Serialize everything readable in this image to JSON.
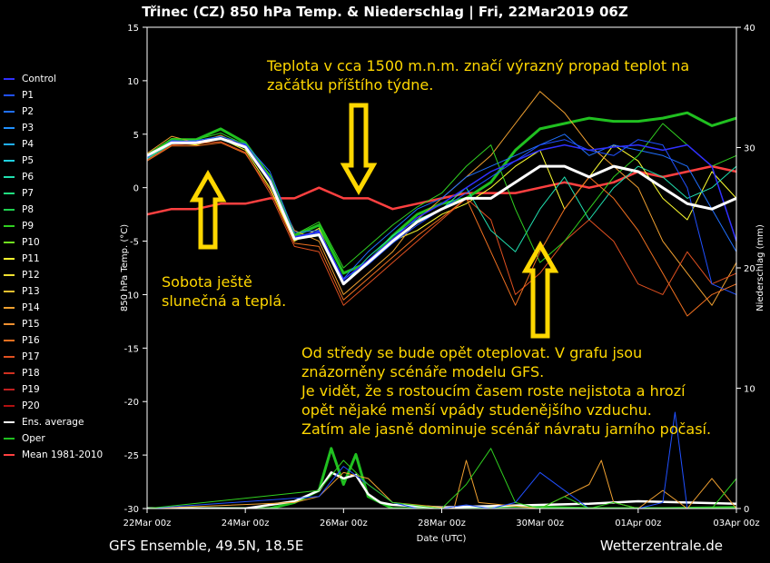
{
  "title": "Třinec  (CZ)  850 hPa Temp. & Niederschlag | Fri, 22Mar2019 06Z",
  "footer_left": "GFS Ensemble, 49.5N, 18.5E",
  "footer_right": "Wetterzentrale.de",
  "annotations": {
    "top": [
      "Teplota v cca 1500 m.n.m. značí výrazný propad teplot na",
      "začátku příštího týdne."
    ],
    "left": [
      "Sobota ještě",
      "slunečná a teplá."
    ],
    "bottom": [
      "Od středy se bude opět oteplovat. V grafu jsou",
      "znázorněny scénáře modelu GFS.",
      "Je vidět, že s rostoucím časem roste nejistota a hrozí",
      "opět nějaké menší vpády studenějšího vzduchu.",
      "Zatím ale jasně dominuje scénář návratu jarního počasí."
    ]
  },
  "chart_data": {
    "type": "line",
    "title": "Třinec  (CZ)  850 hPa Temp. & Niederschlag | Fri, 22Mar2019 06Z",
    "xlabel": "Date (UTC)",
    "ylabel": "850 hPa Temp. (°C)",
    "y2label": "Niederschlag (mm)",
    "x_ticks": [
      "22Mar 00z",
      "24Mar 00z",
      "26Mar 00z",
      "28Mar 00z",
      "30Mar 00z",
      "01Apr 00z",
      "03Apr 00z"
    ],
    "x_hours": [
      0,
      48,
      96,
      144,
      192,
      240,
      288
    ],
    "ylim": [
      -30,
      15
    ],
    "y_ticks": [
      15,
      10,
      5,
      0,
      -5,
      -10,
      -15,
      -20,
      -25,
      -30
    ],
    "y2lim": [
      0,
      40
    ],
    "y2_ticks": [
      40,
      30,
      20,
      10,
      0
    ],
    "grid": false,
    "legend_position": "left-outside",
    "legend": [
      {
        "name": "Control",
        "color": "#3030ff"
      },
      {
        "name": "P1",
        "color": "#2050ff"
      },
      {
        "name": "P2",
        "color": "#2070ff"
      },
      {
        "name": "P3",
        "color": "#2090ff"
      },
      {
        "name": "P4",
        "color": "#20b0ff"
      },
      {
        "name": "P5",
        "color": "#20d0e0"
      },
      {
        "name": "P6",
        "color": "#20e0b0"
      },
      {
        "name": "P7",
        "color": "#20e080"
      },
      {
        "name": "P8",
        "color": "#20d050"
      },
      {
        "name": "P9",
        "color": "#30d020"
      },
      {
        "name": "P10",
        "color": "#70e020"
      },
      {
        "name": "P11",
        "color": "#ffff30"
      },
      {
        "name": "P12",
        "color": "#f0e030"
      },
      {
        "name": "P13",
        "color": "#f0c030"
      },
      {
        "name": "P14",
        "color": "#f0a030"
      },
      {
        "name": "P15",
        "color": "#f09030"
      },
      {
        "name": "P16",
        "color": "#f07020"
      },
      {
        "name": "P17",
        "color": "#e05020"
      },
      {
        "name": "P18",
        "color": "#d03020"
      },
      {
        "name": "P19",
        "color": "#c02020"
      },
      {
        "name": "P20",
        "color": "#b01010"
      },
      {
        "name": "Ens. average",
        "color": "#ffffff"
      },
      {
        "name": "Oper",
        "color": "#20c020"
      },
      {
        "name": "Mean 1981-2010",
        "color": "#ff4040"
      }
    ],
    "series": [
      {
        "key": "mean",
        "color": "#ff4040",
        "width": 2.5,
        "x": [
          0,
          12,
          24,
          36,
          48,
          60,
          72,
          84,
          96,
          108,
          120,
          132,
          144,
          156,
          168,
          180,
          192,
          204,
          216,
          228,
          240,
          252,
          264,
          276,
          288
        ],
        "y": [
          -2.5,
          -2,
          -2,
          -1.5,
          -1.5,
          -1,
          -1,
          0,
          -1,
          -1,
          -2,
          -1.5,
          -1,
          -0.5,
          -0.5,
          -0.5,
          0,
          0.5,
          0,
          0.5,
          1.5,
          1,
          1.5,
          2,
          1.5
        ]
      },
      {
        "key": "oper",
        "color": "#20c020",
        "width": 3,
        "x": [
          0,
          12,
          24,
          36,
          48,
          60,
          72,
          84,
          96,
          108,
          120,
          132,
          144,
          156,
          168,
          180,
          192,
          204,
          216,
          228,
          240,
          252,
          264,
          276,
          288
        ],
        "y": [
          2.8,
          4.5,
          4.5,
          5.5,
          4.2,
          1,
          -4.5,
          -3.5,
          -8,
          -7,
          -4.5,
          -2.5,
          -1.5,
          -1,
          0.5,
          3.5,
          5.5,
          6,
          6.5,
          6.2,
          6.2,
          6.5,
          7,
          5.8,
          6.5
        ]
      },
      {
        "key": "p11",
        "color": "#ffff30",
        "width": 1,
        "x": [
          0,
          12,
          24,
          36,
          48,
          60,
          72,
          84,
          96,
          108,
          120,
          132,
          144,
          156,
          168,
          180,
          192,
          204,
          216,
          228,
          240,
          252,
          264,
          276,
          288
        ],
        "y": [
          3,
          4.2,
          4,
          4.6,
          3.5,
          0,
          -5,
          -3.8,
          -9,
          -7,
          -5,
          -4,
          -2.5,
          -1.5,
          0,
          2,
          3.5,
          -2,
          1,
          4,
          2.5,
          -1,
          -3,
          1.5,
          -1
        ]
      },
      {
        "key": "p14",
        "color": "#f0a030",
        "width": 1,
        "x": [
          0,
          12,
          24,
          36,
          48,
          60,
          72,
          84,
          96,
          108,
          120,
          132,
          144,
          156,
          168,
          180,
          192,
          204,
          216,
          228,
          240,
          252,
          264,
          276,
          288
        ],
        "y": [
          3.2,
          4.8,
          4.2,
          4.9,
          3.8,
          0.5,
          -4,
          -5,
          -10,
          -8,
          -6,
          -3,
          -1,
          1,
          3,
          6,
          9,
          7,
          4,
          2,
          0,
          -5,
          -8,
          -11,
          -7
        ]
      },
      {
        "key": "p17",
        "color": "#e05020",
        "width": 1,
        "x": [
          0,
          12,
          24,
          36,
          48,
          60,
          72,
          84,
          96,
          108,
          120,
          132,
          144,
          156,
          168,
          180,
          192,
          204,
          216,
          228,
          240,
          252,
          264,
          276,
          288
        ],
        "y": [
          2.6,
          4,
          4.1,
          4.3,
          3.3,
          -0.5,
          -5.5,
          -6,
          -11,
          -9,
          -7,
          -5,
          -3,
          -1,
          -3,
          -10,
          -8,
          -5,
          -3,
          -5,
          -9,
          -10,
          -6,
          -9,
          -8
        ]
      },
      {
        "key": "p2",
        "color": "#2070ff",
        "width": 1,
        "x": [
          0,
          12,
          24,
          36,
          48,
          60,
          72,
          84,
          96,
          108,
          120,
          132,
          144,
          156,
          168,
          180,
          192,
          204,
          216,
          228,
          240,
          252,
          264,
          276,
          288
        ],
        "y": [
          2.9,
          4.3,
          4.4,
          4.8,
          4.1,
          1.5,
          -4.2,
          -4,
          -8.5,
          -6,
          -4,
          -2,
          -1,
          1,
          2,
          3,
          4,
          5,
          3,
          4,
          3.5,
          3,
          2,
          -2,
          -6
        ]
      },
      {
        "key": "p6",
        "color": "#20e0b0",
        "width": 1,
        "x": [
          0,
          12,
          24,
          36,
          48,
          60,
          72,
          84,
          96,
          108,
          120,
          132,
          144,
          156,
          168,
          180,
          192,
          204,
          216,
          228,
          240,
          252,
          264,
          276,
          288
        ],
        "y": [
          2.7,
          4.1,
          4.3,
          4.5,
          3.7,
          0.8,
          -4.8,
          -4.5,
          -9,
          -6.5,
          -4.5,
          -3,
          -2,
          0,
          -4,
          -6,
          -2,
          1,
          -3,
          0,
          2,
          1,
          -1,
          0,
          2
        ]
      },
      {
        "key": "p9",
        "color": "#30d020",
        "width": 1,
        "x": [
          0,
          12,
          24,
          36,
          48,
          60,
          72,
          84,
          96,
          108,
          120,
          132,
          144,
          156,
          168,
          180,
          192,
          204,
          216,
          228,
          240,
          252,
          264,
          276,
          288
        ],
        "y": [
          3.1,
          4.6,
          4.5,
          5.1,
          4,
          1.2,
          -4.4,
          -3.2,
          -7.5,
          -5.5,
          -3.5,
          -1.8,
          -0.5,
          2,
          4,
          -2,
          -7,
          -5,
          -2,
          1,
          3,
          6,
          4,
          2,
          3
        ]
      },
      {
        "key": "p1",
        "color": "#2050ff",
        "width": 1,
        "x": [
          0,
          12,
          24,
          36,
          48,
          60,
          72,
          84,
          96,
          108,
          120,
          132,
          144,
          156,
          168,
          180,
          192,
          204,
          216,
          228,
          240,
          252,
          264,
          276,
          288
        ],
        "y": [
          2.8,
          4.4,
          4.3,
          4.7,
          3.9,
          0.6,
          -4.7,
          -4.2,
          -8.8,
          -7.2,
          -5.2,
          -3.5,
          -2,
          -0.5,
          1,
          2.5,
          4,
          4.5,
          3.5,
          3,
          4.5,
          4,
          0,
          -9,
          -10
        ]
      },
      {
        "key": "control",
        "color": "#3030ff",
        "width": 1.5,
        "x": [
          0,
          12,
          24,
          36,
          48,
          60,
          72,
          84,
          96,
          108,
          120,
          132,
          144,
          156,
          168,
          180,
          192,
          204,
          216,
          228,
          240,
          252,
          264,
          276,
          288
        ],
        "y": [
          2.9,
          4.3,
          4.3,
          4.6,
          4,
          0.9,
          -4.6,
          -4.1,
          -8.6,
          -6.8,
          -4.8,
          -2.8,
          -1.5,
          0,
          1.5,
          2.5,
          3.5,
          4,
          3.5,
          3.8,
          4,
          3.5,
          4,
          2,
          -5
        ]
      },
      {
        "key": "p16",
        "color": "#f07020",
        "width": 1,
        "x": [
          0,
          12,
          24,
          36,
          48,
          60,
          72,
          84,
          96,
          108,
          120,
          132,
          144,
          156,
          168,
          180,
          192,
          204,
          216,
          228,
          240,
          252,
          264,
          276,
          288
        ],
        "y": [
          2.5,
          3.9,
          3.9,
          4.2,
          3.2,
          -0.2,
          -5.2,
          -5.5,
          -10.5,
          -8.5,
          -6.5,
          -4.5,
          -2.8,
          -1,
          -6,
          -11,
          -6,
          -2,
          1,
          -1,
          -4,
          -8,
          -12,
          -10,
          -9
        ]
      },
      {
        "key": "ens_avg",
        "color": "#ffffff",
        "width": 3,
        "x": [
          0,
          12,
          24,
          36,
          48,
          60,
          72,
          84,
          96,
          108,
          120,
          132,
          144,
          156,
          168,
          180,
          192,
          204,
          216,
          228,
          240,
          252,
          264,
          276,
          288
        ],
        "y": [
          3,
          4.2,
          4.2,
          4.6,
          3.8,
          0.6,
          -4.8,
          -4.4,
          -9,
          -7,
          -5,
          -3.2,
          -2,
          -1,
          -1,
          0.5,
          2,
          2,
          1,
          2,
          1.5,
          0,
          -1.5,
          -2,
          -1
        ]
      }
    ],
    "precip_series": [
      {
        "key": "oper_precip",
        "color": "#20c020",
        "width": 3,
        "x": [
          0,
          60,
          72,
          84,
          90,
          96,
          102,
          108,
          114,
          120,
          132,
          144,
          180,
          216,
          252,
          288
        ],
        "y": [
          0,
          0,
          0.5,
          1.5,
          5,
          2,
          4.5,
          1,
          0.5,
          0,
          0,
          0,
          0.2,
          0,
          0,
          0.1
        ]
      },
      {
        "key": "avg_precip",
        "color": "#ffffff",
        "width": 2.5,
        "x": [
          0,
          48,
          60,
          72,
          84,
          90,
          96,
          102,
          108,
          114,
          120,
          132,
          144,
          168,
          192,
          216,
          240,
          264,
          288
        ],
        "y": [
          0,
          0,
          0.3,
          0.6,
          1.5,
          3,
          2.5,
          2.8,
          1.2,
          0.5,
          0.3,
          0.2,
          0.1,
          0.2,
          0.3,
          0.4,
          0.6,
          0.5,
          0.4
        ]
      },
      {
        "key": "p14_precip",
        "color": "#f0a030",
        "width": 1,
        "x": [
          0,
          72,
          84,
          96,
          108,
          120,
          150,
          156,
          162,
          180,
          192,
          204,
          216,
          222,
          228,
          240,
          252,
          264,
          276,
          288
        ],
        "y": [
          0,
          0.5,
          1,
          3,
          2.5,
          0.5,
          0,
          4,
          0.5,
          0.2,
          0,
          1,
          2,
          4,
          0.5,
          0,
          1.5,
          0,
          2.5,
          0
        ]
      },
      {
        "key": "p1_precip",
        "color": "#2050ff",
        "width": 1,
        "x": [
          0,
          84,
          96,
          108,
          120,
          132,
          144,
          156,
          168,
          180,
          192,
          216,
          240,
          252,
          258,
          264,
          276,
          288
        ],
        "y": [
          0,
          1,
          3.5,
          2,
          0.5,
          0,
          0,
          0.3,
          0,
          0.5,
          3,
          0,
          0,
          0.5,
          8,
          0,
          0,
          0
        ]
      },
      {
        "key": "p9_precip",
        "color": "#30d020",
        "width": 1,
        "x": [
          0,
          84,
          96,
          108,
          120,
          144,
          156,
          168,
          180,
          192,
          204,
          216,
          228,
          240,
          252,
          264,
          276,
          288
        ],
        "y": [
          0,
          1.5,
          4,
          2,
          0.5,
          0,
          2,
          5,
          0.5,
          0,
          1,
          0,
          0.5,
          0,
          0,
          0,
          0,
          2.5
        ]
      }
    ]
  }
}
